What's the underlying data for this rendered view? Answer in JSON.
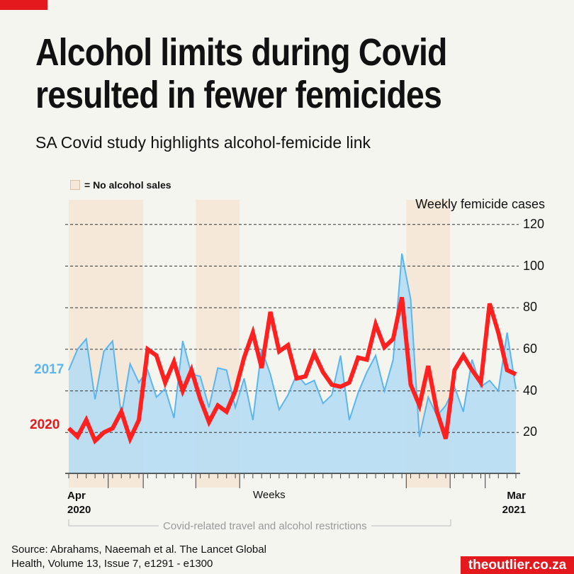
{
  "header": {
    "title_line1": "Alcohol limits during Covid",
    "title_line2": "resulted in fewer femicides",
    "subtitle": "SA Covid study highlights alcohol-femicide link"
  },
  "legend": {
    "no_alcohol_label": "= No alcohol sales"
  },
  "footer": {
    "source_line1": "Source: Abrahams, Naeemah et al. The Lancet Global",
    "source_line2": "Health, Volume 13, Issue 7, e1291 - e1300",
    "brand": "theoutlier.co.za"
  },
  "colors": {
    "s2017": "#5bb5f0",
    "fill2017": "#b3daf5",
    "s2020": "#ff2020",
    "band": "#f5e8d8",
    "brand": "#e3191e"
  },
  "chart_data": {
    "type": "line",
    "title": "Weekly femicide cases",
    "ylabel": "Weekly femicide cases",
    "xlabel": "Weeks",
    "x_start_label": [
      "Apr",
      "2020"
    ],
    "x_end_label": [
      "Mar",
      "2021"
    ],
    "ylim": [
      0,
      120
    ],
    "yticks": [
      20,
      40,
      60,
      80,
      100,
      120
    ],
    "grid": true,
    "annotation": "Covid-related travel and alcohol restrictions",
    "no_alcohol_weeks": [
      [
        0,
        8.5
      ],
      [
        14.5,
        19.5
      ],
      [
        38.5,
        43.5
      ]
    ],
    "series": [
      {
        "name": "2017",
        "values": [
          50,
          60,
          65,
          36,
          59,
          64,
          28,
          53,
          44,
          50,
          37,
          41,
          27,
          64,
          48,
          47,
          32,
          51,
          50,
          32,
          46,
          26,
          60,
          48,
          31,
          38,
          48,
          43,
          45,
          34,
          38,
          57,
          26,
          39,
          49,
          57,
          40,
          55,
          106,
          84,
          18,
          37,
          28,
          33,
          42,
          30,
          55,
          42,
          45,
          40,
          68,
          41
        ]
      },
      {
        "name": "2020",
        "values": [
          22,
          18,
          26,
          16,
          20,
          22,
          30,
          17,
          26,
          60,
          57,
          44,
          54,
          40,
          50,
          36,
          25,
          33,
          30,
          40,
          56,
          68,
          51,
          78,
          59,
          62,
          46,
          47,
          58,
          49,
          43,
          42,
          44,
          56,
          55,
          72,
          61,
          65,
          85,
          43,
          33,
          52,
          30,
          17,
          50,
          57,
          50,
          44,
          82,
          68,
          50,
          48
        ]
      }
    ]
  }
}
